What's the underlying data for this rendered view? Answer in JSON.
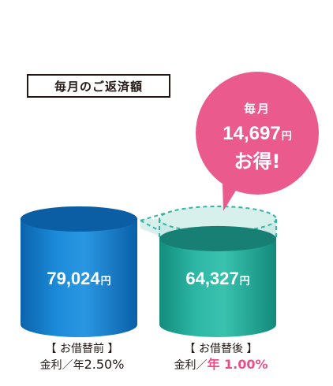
{
  "heading": "毎月のご返済額",
  "colors": {
    "before_fill": "#0f76c4",
    "before_top": "#0b5ea3",
    "after_fill": "#1aa190",
    "after_top": "#177f73",
    "saving_bubble": "#eb5a8c",
    "dashed_outline": "#34b4a4",
    "ghost_fill": "#c9eae6",
    "accent_text": "#e8508a"
  },
  "bubble": {
    "line1": "毎月",
    "amount": "14,697",
    "unit": "円",
    "line3": "お得!"
  },
  "chart_data": {
    "type": "bar",
    "categories": [
      "【お借替前】",
      "【お借替後】"
    ],
    "values": [
      79024,
      64327
    ],
    "value_labels": [
      "79,024",
      "64,327"
    ],
    "unit": "円",
    "rates": [
      "金利／年2.50%",
      "金利／年1.00%"
    ],
    "caption_before": {
      "line1": "【 お借替前 】",
      "rate_prefix": "金利／年",
      "rate_value": "2.50%"
    },
    "caption_after": {
      "line1": "【 お借替後 】",
      "rate_prefix": "金利／",
      "rate_value": "年 1.00%"
    },
    "difference": 14697
  }
}
